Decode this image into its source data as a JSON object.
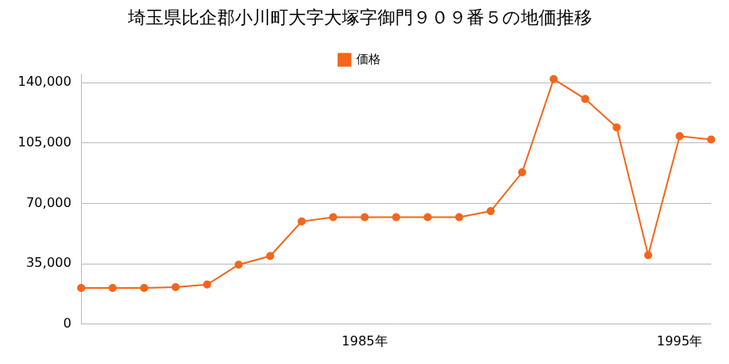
{
  "chart_data": {
    "type": "line",
    "title": "埼玉県比企郡小川町大字大塚字御門９０９番５の地価推移",
    "categories": [
      null,
      null,
      null,
      null,
      null,
      null,
      null,
      null,
      null,
      "1985年",
      null,
      null,
      null,
      null,
      null,
      null,
      null,
      null,
      null,
      "1995年",
      null
    ],
    "series": [
      {
        "name": "価格",
        "color": "#f4661b",
        "marker": "circle",
        "values": [
          21000,
          21000,
          21000,
          21500,
          23000,
          34500,
          39500,
          59500,
          62000,
          62000,
          62000,
          62000,
          62000,
          65500,
          88000,
          142000,
          130500,
          114000,
          40000,
          109000,
          107000
        ]
      }
    ],
    "ylim": [
      0,
      145000
    ],
    "yticks": [
      0,
      {
        "value": 35000,
        "label": "35,000"
      },
      {
        "value": 70000,
        "label": "70,000"
      },
      {
        "value": 105000,
        "label": "105,000"
      },
      {
        "value": 140000,
        "label": "140,000"
      }
    ],
    "grid": true,
    "legend": "top"
  }
}
